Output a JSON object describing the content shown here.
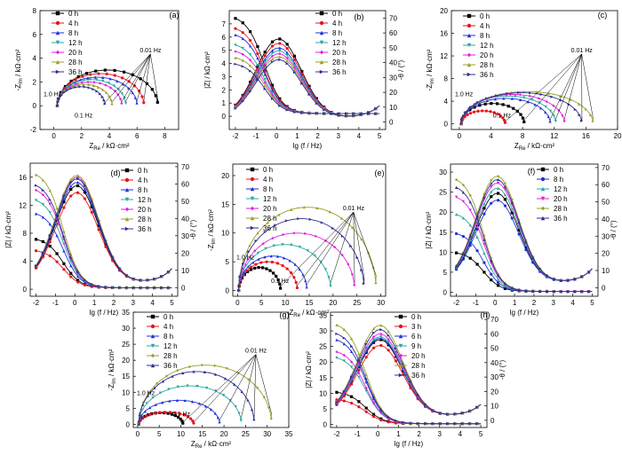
{
  "colors": {
    "0 h": "#000000",
    "3 h": "#e8141c",
    "4 h": "#e8141c",
    "6 h": "#1f2fd9",
    "8 h": "#1f2fd9",
    "9 h": "#2aa7a0",
    "12 h": "#2aa7a0",
    "20 h": "#e21ee0",
    "28 h": "#9aa02a",
    "36 h": "#2c2f8f"
  },
  "chart_data": [
    {
      "panel": "(a)",
      "type": "scatter",
      "xlabel": "Z_Re / kΩ·cm²",
      "ylabel": "-Z_Im / kΩ·cm²",
      "xlim": [
        -1,
        9
      ],
      "ylim": [
        -2,
        8
      ],
      "xticks": [
        0,
        2,
        4,
        6,
        8
      ],
      "yticks": [
        -2,
        0,
        2,
        4,
        6,
        8
      ],
      "legend": [
        "0 h",
        "4 h",
        "8 h",
        "12 h",
        "20 h",
        "28 h",
        "36 h"
      ],
      "legend_position": "upper-left",
      "annotations": [
        "0.01 Hz",
        "1.0 Hz",
        "0.1 Hz"
      ],
      "series": [
        {
          "name": "0 h",
          "r_end": 7.5,
          "peak": 3.0
        },
        {
          "name": "4 h",
          "r_end": 6.5,
          "peak": 2.7
        },
        {
          "name": "8 h",
          "r_end": 6.0,
          "peak": 2.4
        },
        {
          "name": "12 h",
          "r_end": 5.2,
          "peak": 2.2
        },
        {
          "name": "20 h",
          "r_end": 4.9,
          "peak": 2.0
        },
        {
          "name": "28 h",
          "r_end": 4.2,
          "peak": 1.8
        },
        {
          "name": "36 h",
          "r_end": 3.7,
          "peak": 1.6
        }
      ]
    },
    {
      "panel": "(b)",
      "type": "line",
      "xlabel": "lg (f / Hz)",
      "ylabel": "|Z| / kΩ·cm²",
      "y2label": "-θ / (°)",
      "xlim": [
        -2.3,
        5.3
      ],
      "ylim": [
        -1,
        8
      ],
      "y2lim": [
        -5,
        75
      ],
      "xticks": [
        -2,
        -1,
        0,
        1,
        2,
        3,
        4,
        5
      ],
      "yticks": [
        0,
        1,
        2,
        3,
        4,
        5,
        6,
        7
      ],
      "y2ticks": [
        0,
        10,
        20,
        30,
        40,
        50,
        60,
        70
      ],
      "legend": [
        "0 h",
        "4 h",
        "8 h",
        "12 h",
        "20 h",
        "28 h",
        "36 h"
      ],
      "legend_position": "upper-right",
      "series": [
        {
          "name": "0 h",
          "z_low": 7.5,
          "phase_peak": 53
        },
        {
          "name": "4 h",
          "z_low": 6.7,
          "phase_peak": 50
        },
        {
          "name": "8 h",
          "z_low": 6.2,
          "phase_peak": 47
        },
        {
          "name": "12 h",
          "z_low": 5.4,
          "phase_peak": 45
        },
        {
          "name": "20 h",
          "z_low": 4.9,
          "phase_peak": 43
        },
        {
          "name": "28 h",
          "z_low": 4.4,
          "phase_peak": 41
        },
        {
          "name": "36 h",
          "z_low": 3.9,
          "phase_peak": 39
        }
      ]
    },
    {
      "panel": "(c)",
      "type": "scatter",
      "xlabel": "Z_Re / kΩ·cm²",
      "ylabel": "-Z_Im / kΩ·cm²",
      "xlim": [
        -1,
        20
      ],
      "ylim": [
        -1,
        20
      ],
      "xticks": [
        0,
        4,
        8,
        12,
        16,
        20
      ],
      "yticks": [
        0,
        4,
        8,
        12,
        16,
        20
      ],
      "legend": [
        "0 h",
        "4 h",
        "8 h",
        "12 h",
        "20 h",
        "28 h",
        "36 h"
      ],
      "legend_position": "upper-left",
      "annotations": [
        "0.01 Hz",
        "1.0 Hz",
        "0.1 Hz"
      ],
      "series": [
        {
          "name": "0 h",
          "r_end": 8.2,
          "peak": 3.6
        },
        {
          "name": "4 h",
          "r_end": 5.8,
          "peak": 2.3
        },
        {
          "name": "8 h",
          "r_end": 11.5,
          "peak": 4.5
        },
        {
          "name": "12 h",
          "r_end": 12.2,
          "peak": 4.9
        },
        {
          "name": "20 h",
          "r_end": 13.3,
          "peak": 5.2
        },
        {
          "name": "28 h",
          "r_end": 16.9,
          "peak": 5.7
        },
        {
          "name": "36 h",
          "r_end": 15.5,
          "peak": 5.5
        }
      ]
    },
    {
      "panel": "(d)",
      "type": "line",
      "xlabel": "lg (f / Hz)",
      "ylabel": "|Z| / kΩ·cm²",
      "y2label": "-θ / (°)",
      "xlim": [
        -2.3,
        5.3
      ],
      "ylim": [
        -1,
        18
      ],
      "y2lim": [
        -5,
        72
      ],
      "xticks": [
        -2,
        -1,
        0,
        1,
        2,
        3,
        4,
        5
      ],
      "yticks": [
        0,
        4,
        8,
        12,
        16
      ],
      "y2ticks": [
        0,
        10,
        20,
        30,
        40,
        50,
        60,
        70
      ],
      "legend": [
        "0 h",
        "4 h",
        "8 h",
        "12 h",
        "20 h",
        "28 h",
        "36 h"
      ],
      "legend_position": "upper-right",
      "series": [
        {
          "name": "0 h",
          "z_low": 7.2,
          "phase_peak": 56
        },
        {
          "name": "4 h",
          "z_low": 5.5,
          "phase_peak": 52
        },
        {
          "name": "8 h",
          "z_low": 11.0,
          "phase_peak": 58
        },
        {
          "name": "12 h",
          "z_low": 13.0,
          "phase_peak": 60
        },
        {
          "name": "20 h",
          "z_low": 14.5,
          "phase_peak": 61
        },
        {
          "name": "28 h",
          "z_low": 16.8,
          "phase_peak": 62
        },
        {
          "name": "36 h",
          "z_low": 15.2,
          "phase_peak": 60
        }
      ]
    },
    {
      "panel": "(e)",
      "type": "scatter",
      "xlabel": "Z_Re / kΩ·cm²",
      "ylabel": "-Z_Im / kΩ·cm²",
      "xlim": [
        -1,
        31
      ],
      "ylim": [
        -1,
        22
      ],
      "xticks": [
        0,
        5,
        10,
        15,
        20,
        25,
        30
      ],
      "yticks": [
        0,
        5,
        10,
        15,
        20
      ],
      "legend": [
        "0 h",
        "4 h",
        "8 h",
        "12 h",
        "20 h",
        "28 h",
        "36 h"
      ],
      "legend_position": "upper-left",
      "annotations": [
        "0.01 Hz",
        "1.0 Hz",
        "0.1 Hz"
      ],
      "series": [
        {
          "name": "0 h",
          "r_end": 9.0,
          "peak": 4.0
        },
        {
          "name": "4 h",
          "r_end": 12.5,
          "peak": 5.0
        },
        {
          "name": "8 h",
          "r_end": 14.5,
          "peak": 6.0
        },
        {
          "name": "12 h",
          "r_end": 19.5,
          "peak": 8.0
        },
        {
          "name": "20 h",
          "r_end": 24.5,
          "peak": 10.0
        },
        {
          "name": "28 h",
          "r_end": 29.0,
          "peak": 14.5
        },
        {
          "name": "36 h",
          "r_end": 26.5,
          "peak": 12.5
        }
      ]
    },
    {
      "panel": "(f)",
      "type": "line",
      "xlabel": "lg (f / Hz)",
      "ylabel": "|Z| / kΩ·cm²",
      "y2label": "-θ / (°)",
      "xlim": [
        -2.3,
        5.3
      ],
      "ylim": [
        -1,
        32
      ],
      "y2lim": [
        -5,
        72
      ],
      "xticks": [
        -2,
        -1,
        0,
        1,
        2,
        3,
        4,
        5
      ],
      "yticks": [
        0,
        5,
        10,
        15,
        20,
        25,
        30
      ],
      "y2ticks": [
        0,
        10,
        20,
        30,
        40,
        50,
        60,
        70
      ],
      "legend": [
        "0 h",
        "8 h",
        "12 h",
        "20 h",
        "28 h",
        "36 h"
      ],
      "legend_position": "upper-right",
      "series": [
        {
          "name": "0 h",
          "z_low": 10.0,
          "phase_peak": 52
        },
        {
          "name": "8 h",
          "z_low": 15.0,
          "phase_peak": 48
        },
        {
          "name": "12 h",
          "z_low": 20.0,
          "phase_peak": 55
        },
        {
          "name": "20 h",
          "z_low": 24.5,
          "phase_peak": 58
        },
        {
          "name": "28 h",
          "z_low": 29.0,
          "phase_peak": 62
        },
        {
          "name": "36 h",
          "z_low": 27.0,
          "phase_peak": 60
        }
      ]
    },
    {
      "panel": "(g)",
      "type": "scatter",
      "xlabel": "Z_Re / kΩ·cm²",
      "ylabel": "-Z_Im / kΩ·cm²",
      "xlim": [
        -1,
        35
      ],
      "ylim": [
        -1,
        35
      ],
      "xticks": [
        0,
        5,
        10,
        15,
        20,
        25,
        30,
        35
      ],
      "yticks": [
        0,
        5,
        10,
        15,
        20,
        25,
        30,
        35
      ],
      "legend": [
        "0 h",
        "4 h",
        "8 h",
        "12 h",
        "28 h",
        "36 h"
      ],
      "legend_position": "upper-left",
      "annotations": [
        "0.01 Hz",
        "0.1 Hz",
        "1.0 Hz"
      ],
      "series": [
        {
          "name": "0 h",
          "r_end": 10.5,
          "peak": 3.6
        },
        {
          "name": "4 h",
          "r_end": 13.0,
          "peak": 3.8
        },
        {
          "name": "8 h",
          "r_end": 19.0,
          "peak": 7.5
        },
        {
          "name": "12 h",
          "r_end": 24.0,
          "peak": 12.0
        },
        {
          "name": "28 h",
          "r_end": 31.0,
          "peak": 18.5
        },
        {
          "name": "36 h",
          "r_end": 27.0,
          "peak": 16.5
        }
      ]
    },
    {
      "panel": "(h)",
      "type": "line",
      "xlabel": "lg (f / Hz)",
      "ylabel": "|Z| / kΩ·cm²",
      "y2label": "-θ / (°)",
      "xlim": [
        -2.3,
        5.3
      ],
      "ylim": [
        -1,
        36
      ],
      "y2lim": [
        -5,
        75
      ],
      "xticks": [
        -2,
        -1,
        0,
        1,
        2,
        3,
        4,
        5
      ],
      "yticks": [
        0,
        5,
        10,
        15,
        20,
        25,
        30,
        35
      ],
      "y2ticks": [
        0,
        10,
        20,
        30,
        40,
        50,
        60,
        70
      ],
      "legend": [
        "0 h",
        "3 h",
        "6 h",
        "9 h",
        "20 h",
        "28 h",
        "36 h"
      ],
      "legend_position": "upper-right",
      "series": [
        {
          "name": "0 h",
          "z_low": 10.5,
          "phase_peak": 53
        },
        {
          "name": "3 h",
          "z_low": 8.0,
          "phase_peak": 49
        },
        {
          "name": "6 h",
          "z_low": 28.0,
          "phase_peak": 54
        },
        {
          "name": "9 h",
          "z_low": 22.0,
          "phase_peak": 55
        },
        {
          "name": "20 h",
          "z_low": 24.0,
          "phase_peak": 57
        },
        {
          "name": "28 h",
          "z_low": 33.0,
          "phase_peak": 63
        },
        {
          "name": "36 h",
          "z_low": 30.0,
          "phase_peak": 60
        }
      ]
    }
  ]
}
